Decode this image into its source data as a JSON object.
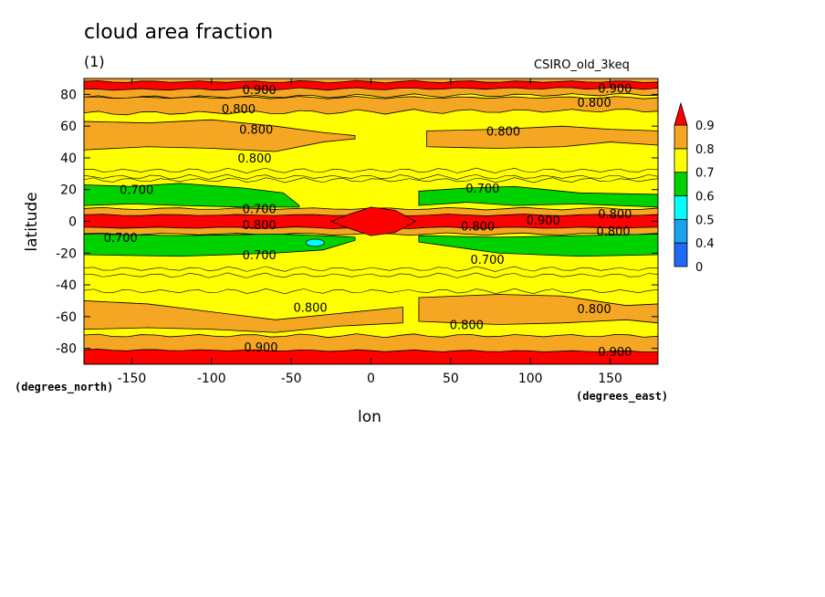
{
  "title": "cloud area fraction",
  "panel_label": "(1)",
  "model_label": "CSIRO_old_3keq",
  "colors": {
    "c0_0.4": "#1e6cf5",
    "c0.4_0.5": "#1ca0f0",
    "c0.5_0.6": "#00ffff",
    "c0.6_0.7": "#00d200",
    "c0.7_0.8": "#ffff00",
    "c0.8_0.9": "#f5a623",
    "c0.9_up": "#ff0000"
  },
  "chart_data": {
    "type": "heatmap",
    "subtype": "filled contour map",
    "xlabel": "lon",
    "ylabel": "latitude",
    "x_units": "(degrees_east)",
    "y_units": "(degrees_north)",
    "xlim": [
      -180,
      180
    ],
    "ylim": [
      -90,
      90
    ],
    "x_ticks": [
      -150,
      -100,
      -50,
      0,
      50,
      100,
      150
    ],
    "y_ticks": [
      -80,
      -60,
      -40,
      -20,
      0,
      20,
      40,
      60,
      80
    ],
    "x_tick_labels": [
      "-150",
      "-100",
      "-50",
      "0",
      "50",
      "100",
      "150"
    ],
    "y_tick_labels": [
      "-80",
      "-60",
      "-40",
      "-20",
      "0",
      "20",
      "40",
      "60",
      "80"
    ],
    "colorbar": {
      "levels": [
        0,
        0.4,
        0.5,
        0.6,
        0.7,
        0.8,
        0.9
      ],
      "labels": [
        "0",
        "0.4",
        "0.5",
        "0.6",
        "0.7",
        "0.8",
        "0.9"
      ],
      "extend": "max"
    },
    "zonal_bands": [
      {
        "lat_min": 80,
        "lat_max": 90,
        "range": "0.8-0.9"
      },
      {
        "lat_min": 78,
        "lat_max": 88,
        "range": ">0.9"
      },
      {
        "lat_min": 68,
        "lat_max": 78,
        "range": "0.8-0.9"
      },
      {
        "lat_min": 28,
        "lat_max": 68,
        "range": "0.7-0.8"
      },
      {
        "lat_min": 45,
        "lat_max": 62,
        "range": "0.8-0.9",
        "note": "patchy"
      },
      {
        "lat_min": 10,
        "lat_max": 22,
        "range": "0.6-0.7"
      },
      {
        "lat_min": 2,
        "lat_max": 8,
        "range": "0.8-0.9"
      },
      {
        "lat_min": -3,
        "lat_max": 3,
        "range": ">0.9"
      },
      {
        "lat_min": -22,
        "lat_max": -8,
        "range": "0.6-0.7"
      },
      {
        "lat_min": -15,
        "lat_max": -12,
        "range": "0.5-0.6",
        "note": "small patch near lon -35"
      },
      {
        "lat_min": -68,
        "lat_max": -30,
        "range": "0.7-0.8"
      },
      {
        "lat_min": -70,
        "lat_max": -48,
        "range": "0.8-0.9"
      },
      {
        "lat_min": -82,
        "lat_max": -72,
        "range": "0.8-0.9"
      },
      {
        "lat_min": -90,
        "lat_max": -82,
        "range": ">0.9"
      }
    ],
    "contour_labels": [
      {
        "text": "0.900",
        "lon": -70,
        "lat": 83
      },
      {
        "text": "0.900",
        "lon": 153,
        "lat": 84
      },
      {
        "text": "0.800",
        "lon": -83,
        "lat": 71
      },
      {
        "text": "0.800",
        "lon": 140,
        "lat": 75
      },
      {
        "text": "0.800",
        "lon": -72,
        "lat": 58
      },
      {
        "text": "0.800",
        "lon": 83,
        "lat": 57
      },
      {
        "text": "0.800",
        "lon": -73,
        "lat": 40
      },
      {
        "text": "0.700",
        "lon": -147,
        "lat": 20
      },
      {
        "text": "0.700",
        "lon": 70,
        "lat": 21
      },
      {
        "text": "0.700",
        "lon": -70,
        "lat": 8
      },
      {
        "text": "0.800",
        "lon": -70,
        "lat": -2
      },
      {
        "text": "0.800",
        "lon": 67,
        "lat": -3
      },
      {
        "text": "0.900",
        "lon": 108,
        "lat": 1
      },
      {
        "text": "0.800",
        "lon": 153,
        "lat": 5
      },
      {
        "text": "0.800",
        "lon": 152,
        "lat": -6
      },
      {
        "text": "0.700",
        "lon": -157,
        "lat": -10
      },
      {
        "text": "0.700",
        "lon": -70,
        "lat": -21
      },
      {
        "text": "0.700",
        "lon": 73,
        "lat": -24
      },
      {
        "text": "0.800",
        "lon": -38,
        "lat": -54
      },
      {
        "text": "0.800",
        "lon": 140,
        "lat": -55
      },
      {
        "text": "0.800",
        "lon": 60,
        "lat": -65
      },
      {
        "text": "0.900",
        "lon": -69,
        "lat": -79
      },
      {
        "text": "0.900",
        "lon": 153,
        "lat": -82
      }
    ]
  }
}
